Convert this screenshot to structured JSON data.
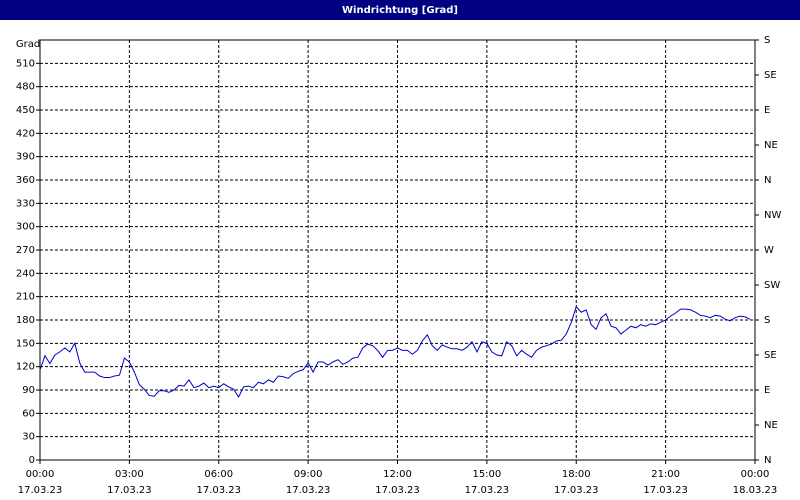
{
  "chart_data": {
    "type": "line",
    "title": "Windrichtung [Grad]",
    "ylabel": "Grad",
    "x": [
      0,
      10,
      20,
      30,
      40,
      50,
      60,
      70,
      80,
      90,
      100,
      110,
      120,
      130,
      140,
      150,
      160,
      170,
      180,
      190,
      200,
      210,
      220,
      230,
      240,
      250,
      260,
      270,
      280,
      290,
      300,
      310,
      320,
      330,
      340,
      350,
      360,
      370,
      380,
      390,
      400,
      410,
      420,
      430,
      440,
      450,
      460,
      470,
      480,
      490,
      500,
      510,
      520,
      530,
      540,
      550,
      560,
      570,
      580,
      590,
      600,
      610,
      620,
      630,
      640,
      650,
      660,
      670,
      680,
      690,
      700,
      710,
      720,
      730,
      740,
      750,
      760,
      770,
      780,
      790,
      800,
      810,
      820,
      830,
      840,
      850,
      860,
      870,
      880,
      890,
      900,
      910,
      920,
      930,
      940,
      950,
      960,
      970,
      980,
      990,
      1000,
      1010,
      1020,
      1030,
      1040,
      1050,
      1060,
      1070,
      1080,
      1090,
      1100,
      1110,
      1120,
      1130,
      1140,
      1150,
      1160,
      1170,
      1180,
      1190,
      1200,
      1210,
      1220,
      1230,
      1240,
      1250,
      1260,
      1270,
      1280,
      1290,
      1300,
      1310,
      1320,
      1330,
      1340,
      1350,
      1360,
      1370,
      1380,
      1390,
      1400,
      1410,
      1420,
      1430
    ],
    "values": [
      116,
      134,
      124,
      135,
      139,
      144,
      139,
      150,
      125,
      113,
      113,
      113,
      108,
      106,
      106,
      108,
      109,
      131,
      126,
      113,
      97,
      91,
      83,
      82,
      89,
      89,
      87,
      90,
      96,
      95,
      103,
      93,
      95,
      99,
      93,
      95,
      93,
      98,
      94,
      91,
      81,
      94,
      95,
      93,
      100,
      98,
      103,
      100,
      108,
      107,
      105,
      111,
      114,
      116,
      125,
      113,
      126,
      126,
      122,
      126,
      129,
      123,
      126,
      131,
      132,
      144,
      149,
      147,
      141,
      132,
      141,
      141,
      144,
      141,
      141,
      136,
      141,
      153,
      161,
      147,
      141,
      148,
      145,
      143,
      143,
      141,
      145,
      152,
      139,
      152,
      150,
      139,
      135,
      134,
      152,
      147,
      134,
      141,
      136,
      132,
      141,
      145,
      147,
      149,
      153,
      154,
      162,
      177,
      197,
      190,
      193,
      174,
      168,
      183,
      188,
      172,
      170,
      162,
      167,
      172,
      170,
      174,
      172,
      175,
      174,
      177,
      180,
      185,
      189,
      194,
      194,
      193,
      190,
      186,
      185,
      183,
      186,
      185,
      181,
      179,
      183,
      185,
      184,
      181
    ],
    "color": "#0000cc",
    "xlim": [
      0,
      1440
    ],
    "xticks": [
      {
        "value": 0,
        "label": "00:00"
      },
      {
        "value": 180,
        "label": "03:00"
      },
      {
        "value": 360,
        "label": "06:00"
      },
      {
        "value": 540,
        "label": "09:00"
      },
      {
        "value": 720,
        "label": "12:00"
      },
      {
        "value": 900,
        "label": "15:00"
      },
      {
        "value": 1080,
        "label": "18:00"
      },
      {
        "value": 1260,
        "label": "21:00"
      },
      {
        "value": 1440,
        "label": "00:00"
      }
    ],
    "x_tick_dates": [
      "17.03.23",
      "17.03.23",
      "17.03.23",
      "17.03.23",
      "17.03.23",
      "17.03.23",
      "17.03.23",
      "17.03.23",
      "18.03.23"
    ],
    "ylim": [
      0,
      540
    ],
    "yticks": [
      0,
      30,
      60,
      90,
      120,
      150,
      180,
      210,
      240,
      270,
      300,
      330,
      360,
      390,
      420,
      450,
      480,
      510
    ],
    "y2lim": [
      0,
      540
    ],
    "y2ticks": [
      {
        "value": 0,
        "label": "N"
      },
      {
        "value": 45,
        "label": "NE"
      },
      {
        "value": 90,
        "label": "E"
      },
      {
        "value": 135,
        "label": "SE"
      },
      {
        "value": 180,
        "label": "S"
      },
      {
        "value": 225,
        "label": "SW"
      },
      {
        "value": 270,
        "label": "W"
      },
      {
        "value": 315,
        "label": "NW"
      },
      {
        "value": 360,
        "label": "N"
      },
      {
        "value": 405,
        "label": "NE"
      },
      {
        "value": 450,
        "label": "E"
      },
      {
        "value": 495,
        "label": "SE"
      },
      {
        "value": 540,
        "label": "S"
      }
    ],
    "grid": true
  }
}
